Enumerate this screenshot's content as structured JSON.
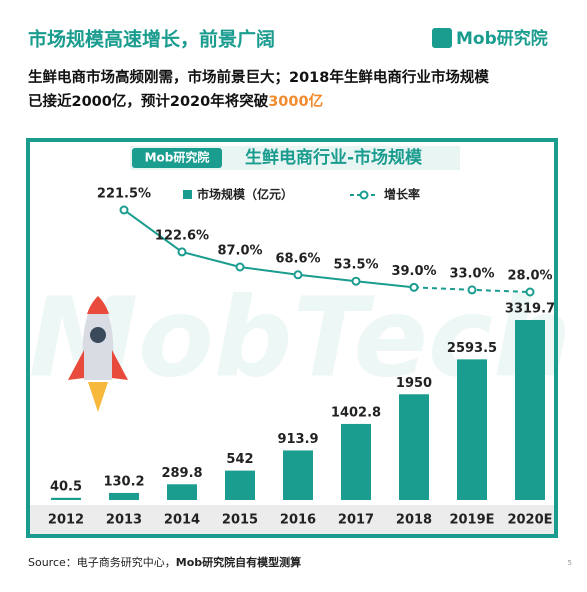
{
  "header": {
    "title": "市场规模高速增长，前景广阔",
    "logo": "Mob研究院"
  },
  "subtitle": {
    "line1": "生鲜电商市场高频刚需，市场前景巨大；2018年生鲜电商行业市场规模",
    "line2": "已接近2000亿，预计2020年将突破",
    "highlight": "3000亿"
  },
  "chart_data": {
    "type": "bar_line",
    "title": "生鲜电商行业-市场规模",
    "logo": "Mob研究院",
    "watermark": "MobTech",
    "categories": [
      "2012",
      "2013",
      "2014",
      "2015",
      "2016",
      "2017",
      "2018",
      "2019E",
      "2020E"
    ],
    "dashed_segments_from": 6,
    "series": [
      {
        "name": "市场规模（亿元）",
        "type": "bar",
        "color": "#1a9c8f",
        "values": [
          40.5,
          130.2,
          289.8,
          542,
          913.9,
          1402.8,
          1950,
          2593.5,
          3319.7
        ]
      },
      {
        "name": "增长率",
        "type": "line",
        "color": "#1a9c8f",
        "values": [
          null,
          221.5,
          122.6,
          87.0,
          68.6,
          53.5,
          39.0,
          33.0,
          28.0
        ],
        "value_labels": [
          null,
          "221.5%",
          "122.6%",
          "87.0%",
          "68.6%",
          "53.5%",
          "39.0%",
          "33.0%",
          "28.0%"
        ]
      }
    ]
  },
  "footer": {
    "source": "Source：电子商务研究中心，",
    "source_bold": "Mob研究院自有模型测算",
    "page": "5"
  }
}
